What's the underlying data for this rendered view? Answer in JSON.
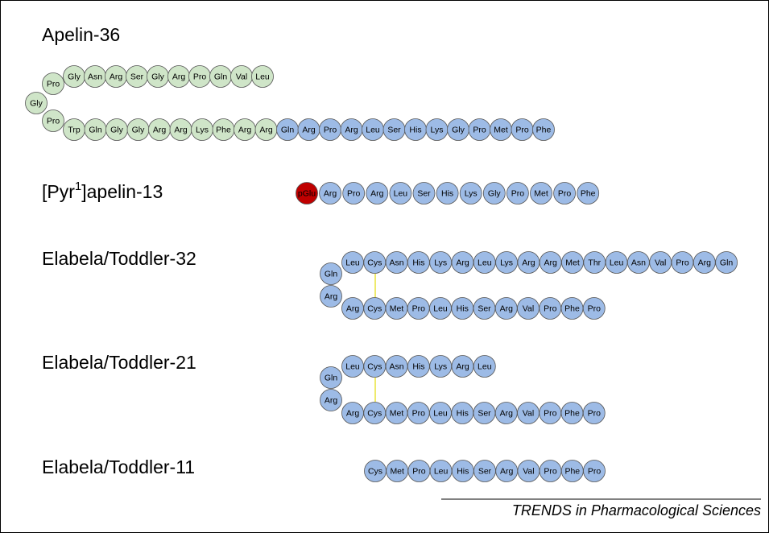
{
  "peptides": [
    {
      "name": "Apelin-36",
      "top": [
        {
          "color": "#cfe5c8",
          "residues": [
            "Gly",
            "Asn",
            "Arg",
            "Ser",
            "Gly",
            "Arg",
            "Pro",
            "Gln",
            "Val",
            "Leu"
          ]
        }
      ],
      "turn": [
        {
          "color": "#cfe5c8",
          "residues": [
            "Pro",
            "Gly",
            "Pro"
          ]
        }
      ],
      "bottom": [
        {
          "color": "#cfe5c8",
          "residues": [
            "Trp",
            "Gln",
            "Gly",
            "Gly",
            "Arg",
            "Arg",
            "Lys",
            "Phe",
            "Arg",
            "Arg"
          ]
        },
        {
          "color": "#9dbbe6",
          "residues": [
            "Gln",
            "Arg",
            "Pro",
            "Arg",
            "Leu",
            "Ser",
            "His",
            "Lys",
            "Gly",
            "Pro",
            "Met",
            "Pro",
            "Phe"
          ]
        }
      ]
    },
    {
      "name": {
        "prefix": "[Pyr",
        "sup": "1",
        "suffix": "]apelin-13"
      },
      "bottom": [
        {
          "color": "#c00000",
          "residues": [
            "pGlu"
          ]
        },
        {
          "color": "#9dbbe6",
          "residues": [
            "Arg",
            "Pro",
            "Arg",
            "Leu",
            "Ser",
            "His",
            "Lys",
            "Gly",
            "Pro",
            "Met",
            "Pro",
            "Phe"
          ]
        }
      ]
    },
    {
      "name": "Elabela/Toddler-32",
      "top": [
        {
          "color": "#9dbbe6",
          "residues": [
            "Leu",
            "Cys",
            "Asn",
            "His",
            "Lys",
            "Arg",
            "Leu",
            "Lys",
            "Arg",
            "Arg",
            "Met",
            "Thr",
            "Leu",
            "Asn",
            "Val",
            "Pro",
            "Arg",
            "Gln"
          ]
        }
      ],
      "turn": [
        {
          "color": "#9dbbe6",
          "residues": [
            "Gln",
            "Arg"
          ]
        }
      ],
      "bottom": [
        {
          "color": "#9dbbe6",
          "residues": [
            "Arg",
            "Cys",
            "Met",
            "Pro",
            "Leu",
            "His",
            "Ser",
            "Arg",
            "Val",
            "Pro",
            "Phe",
            "Pro"
          ]
        }
      ]
    },
    {
      "name": "Elabela/Toddler-21",
      "top": [
        {
          "color": "#9dbbe6",
          "residues": [
            "Leu",
            "Cys",
            "Asn",
            "His",
            "Lys",
            "Arg",
            "Leu"
          ]
        }
      ],
      "turn": [
        {
          "color": "#9dbbe6",
          "residues": [
            "Gln",
            "Arg"
          ]
        }
      ],
      "bottom": [
        {
          "color": "#9dbbe6",
          "residues": [
            "Arg",
            "Cys",
            "Met",
            "Pro",
            "Leu",
            "His",
            "Ser",
            "Arg",
            "Val",
            "Pro",
            "Phe",
            "Pro"
          ]
        }
      ]
    },
    {
      "name": "Elabela/Toddler-11",
      "bottom": [
        {
          "color": "#9dbbe6",
          "residues": [
            "Cys",
            "Met",
            "Pro",
            "Leu",
            "His",
            "Ser",
            "Arg",
            "Val",
            "Pro",
            "Phe",
            "Pro"
          ]
        }
      ]
    }
  ],
  "footer": "TRENDS in Pharmacological Sciences"
}
